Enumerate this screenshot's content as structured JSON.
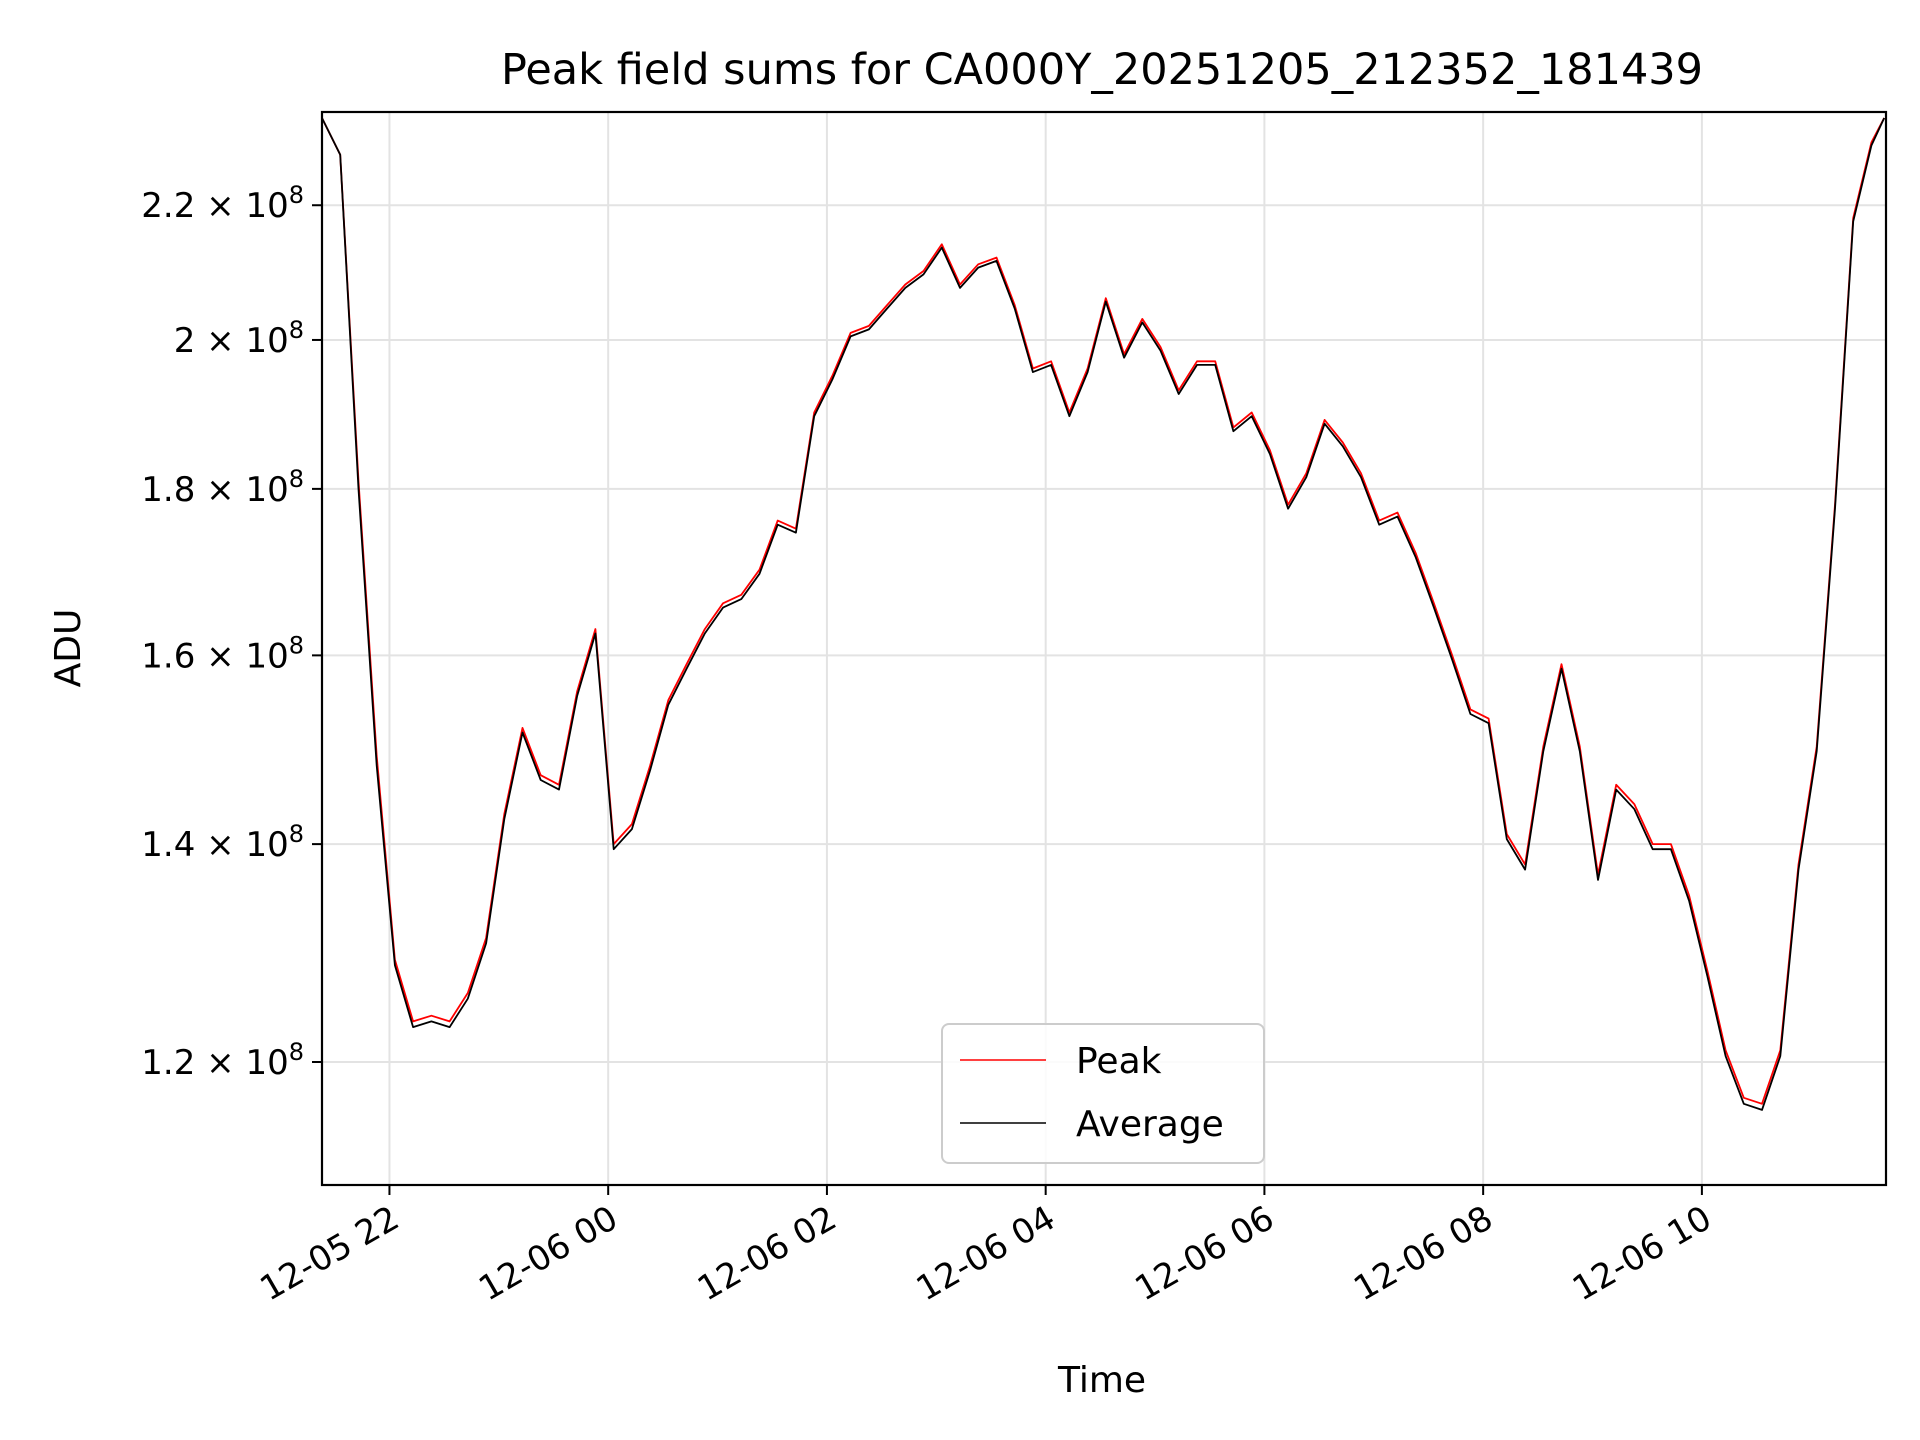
{
  "chart_data": {
    "type": "line",
    "title": "Peak field sums for CA000Y_20251205_212352_181439",
    "xlabel": "Time",
    "ylabel": "ADU",
    "yscale": "log",
    "grid": true,
    "legend_position": "bottom-center",
    "xlim": [
      "2025-12-05 21:23",
      "2025-12-06 11:41"
    ],
    "ylim": [
      110000000,
      235000000
    ],
    "x_ticks": [
      "12-05 22",
      "12-06 00",
      "12-06 02",
      "12-06 04",
      "12-06 06",
      "12-06 08",
      "12-06 10"
    ],
    "y_ticks": [
      {
        "value": 120000000,
        "mantissa": "1.2",
        "exponent": "8"
      },
      {
        "value": 140000000,
        "mantissa": "1.4",
        "exponent": "8"
      },
      {
        "value": 160000000,
        "mantissa": "1.6",
        "exponent": "8"
      },
      {
        "value": 180000000,
        "mantissa": "1.8",
        "exponent": "8"
      },
      {
        "value": 200000000,
        "mantissa": "2",
        "exponent": "8"
      },
      {
        "value": 220000000,
        "mantissa": "2.2",
        "exponent": "8"
      }
    ],
    "x": [
      "2025-12-05 21:23",
      "2025-12-05 21:33",
      "2025-12-05 21:43",
      "2025-12-05 21:53",
      "2025-12-05 22:03",
      "2025-12-05 22:13",
      "2025-12-05 22:23",
      "2025-12-05 22:33",
      "2025-12-05 22:43",
      "2025-12-05 22:53",
      "2025-12-05 23:03",
      "2025-12-05 23:13",
      "2025-12-05 23:23",
      "2025-12-05 23:33",
      "2025-12-05 23:43",
      "2025-12-05 23:53",
      "2025-12-06 00:03",
      "2025-12-06 00:13",
      "2025-12-06 00:23",
      "2025-12-06 00:33",
      "2025-12-06 00:43",
      "2025-12-06 00:53",
      "2025-12-06 01:03",
      "2025-12-06 01:13",
      "2025-12-06 01:23",
      "2025-12-06 01:33",
      "2025-12-06 01:43",
      "2025-12-06 01:53",
      "2025-12-06 02:03",
      "2025-12-06 02:13",
      "2025-12-06 02:23",
      "2025-12-06 02:33",
      "2025-12-06 02:43",
      "2025-12-06 02:53",
      "2025-12-06 03:03",
      "2025-12-06 03:13",
      "2025-12-06 03:23",
      "2025-12-06 03:33",
      "2025-12-06 03:43",
      "2025-12-06 03:53",
      "2025-12-06 04:03",
      "2025-12-06 04:13",
      "2025-12-06 04:23",
      "2025-12-06 04:33",
      "2025-12-06 04:43",
      "2025-12-06 04:53",
      "2025-12-06 05:03",
      "2025-12-06 05:13",
      "2025-12-06 05:23",
      "2025-12-06 05:33",
      "2025-12-06 05:43",
      "2025-12-06 05:53",
      "2025-12-06 06:03",
      "2025-12-06 06:13",
      "2025-12-06 06:23",
      "2025-12-06 06:33",
      "2025-12-06 06:43",
      "2025-12-06 06:53",
      "2025-12-06 07:03",
      "2025-12-06 07:13",
      "2025-12-06 07:23",
      "2025-12-06 07:33",
      "2025-12-06 07:43",
      "2025-12-06 07:53",
      "2025-12-06 08:03",
      "2025-12-06 08:13",
      "2025-12-06 08:23",
      "2025-12-06 08:33",
      "2025-12-06 08:43",
      "2025-12-06 08:53",
      "2025-12-06 09:03",
      "2025-12-06 09:13",
      "2025-12-06 09:23",
      "2025-12-06 09:33",
      "2025-12-06 09:43",
      "2025-12-06 09:53",
      "2025-12-06 10:03",
      "2025-12-06 10:13",
      "2025-12-06 10:23",
      "2025-12-06 10:33",
      "2025-12-06 10:43",
      "2025-12-06 10:53",
      "2025-12-06 11:03",
      "2025-12-06 11:13",
      "2025-12-06 11:23",
      "2025-12-06 11:33",
      "2025-12-06 11:40"
    ],
    "series": [
      {
        "name": "Peak",
        "color": "#ff0000",
        "values": [
          234000000,
          228000000,
          181000000,
          149000000,
          129000000,
          123500000,
          124000000,
          123500000,
          126000000,
          131000000,
          143000000,
          152000000,
          147000000,
          146000000,
          156000000,
          163000000,
          140000000,
          142000000,
          148000000,
          155000000,
          159000000,
          163000000,
          166000000,
          167000000,
          170000000,
          176000000,
          175000000,
          190000000,
          195000000,
          201000000,
          202000000,
          205000000,
          208000000,
          210000000,
          214000000,
          208000000,
          211000000,
          212000000,
          205000000,
          196000000,
          197000000,
          190000000,
          196000000,
          206000000,
          198000000,
          203000000,
          199000000,
          193000000,
          197000000,
          197000000,
          188000000,
          190000000,
          185000000,
          178000000,
          182000000,
          189000000,
          186000000,
          182000000,
          176000000,
          177000000,
          172000000,
          166000000,
          160000000,
          154000000,
          153000000,
          141000000,
          138000000,
          150000000,
          159000000,
          150000000,
          137000000,
          146000000,
          144000000,
          140000000,
          140000000,
          135000000,
          128000000,
          121000000,
          117000000,
          116500000,
          121000000,
          138000000,
          150000000,
          178000000,
          218000000,
          230000000,
          234000000
        ]
      },
      {
        "name": "Average",
        "color": "#000000",
        "values": [
          234000000,
          228000000,
          180000000,
          148000000,
          128500000,
          123000000,
          123500000,
          123000000,
          125500000,
          130500000,
          142500000,
          151500000,
          146500000,
          145500000,
          155500000,
          162500000,
          139500000,
          141500000,
          147500000,
          154500000,
          158500000,
          162500000,
          165500000,
          166500000,
          169500000,
          175500000,
          174500000,
          189500000,
          194500000,
          200500000,
          201500000,
          204500000,
          207500000,
          209500000,
          213500000,
          207500000,
          210500000,
          211500000,
          204500000,
          195500000,
          196500000,
          189500000,
          195500000,
          205500000,
          197500000,
          202500000,
          198500000,
          192500000,
          196500000,
          196500000,
          187500000,
          189500000,
          184500000,
          177500000,
          181500000,
          188500000,
          185500000,
          181500000,
          175500000,
          176500000,
          171500000,
          165500000,
          159500000,
          153500000,
          152500000,
          140500000,
          137500000,
          149500000,
          158500000,
          149500000,
          136500000,
          145500000,
          143500000,
          139500000,
          139500000,
          134500000,
          127500000,
          120500000,
          116500000,
          116000000,
          120500000,
          137500000,
          149500000,
          177500000,
          217500000,
          229500000,
          234000000
        ]
      }
    ]
  }
}
